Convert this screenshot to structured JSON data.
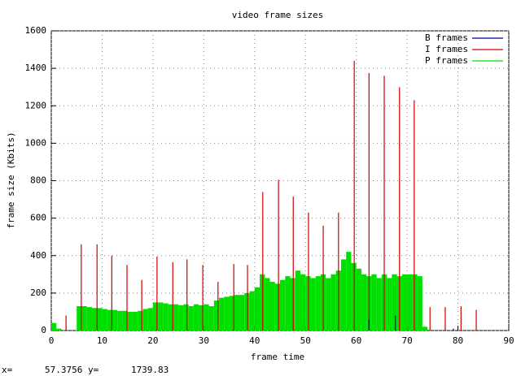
{
  "chart_data": {
    "type": "impulse",
    "title": "video frame sizes",
    "xlabel": "frame time",
    "ylabel": "frame size (Kbits)",
    "xlim": [
      0,
      90
    ],
    "xticks": [
      0,
      10,
      20,
      30,
      40,
      50,
      60,
      70,
      80,
      90
    ],
    "ylim": [
      0,
      1600
    ],
    "yticks": [
      0,
      200,
      400,
      600,
      800,
      1000,
      1200,
      1400,
      1600
    ],
    "grid": true,
    "legend": "top-right",
    "series": [
      {
        "name": "B frames",
        "color": "#0000a0",
        "x": [
          62.5,
          67.7,
          79.1
        ],
        "values": [
          60,
          80,
          10
        ]
      },
      {
        "name": "I frames",
        "color": "#d00000",
        "x": [
          2.9,
          5.9,
          9.0,
          11.9,
          14.9,
          17.8,
          20.8,
          23.9,
          26.7,
          29.8,
          32.8,
          35.9,
          38.6,
          41.6,
          44.7,
          47.6,
          50.6,
          53.5,
          56.5,
          59.6,
          62.5,
          65.5,
          68.5,
          71.4,
          74.5,
          77.5,
          80.6,
          83.6
        ],
        "values": [
          80,
          460,
          460,
          400,
          350,
          270,
          395,
          365,
          380,
          350,
          260,
          355,
          350,
          740,
          805,
          715,
          630,
          560,
          630,
          1440,
          1375,
          1360,
          1300,
          1230,
          125,
          125,
          130,
          110
        ]
      },
      {
        "name": "P frames",
        "color": "#00e000",
        "x": [
          0,
          1,
          2,
          3,
          4,
          5,
          6,
          7,
          8,
          9,
          10,
          11,
          12,
          13,
          14,
          15,
          16,
          17,
          18,
          19,
          20,
          21,
          22,
          23,
          24,
          25,
          26,
          27,
          28,
          29,
          30,
          31,
          32,
          33,
          34,
          35,
          36,
          37,
          38,
          39,
          40,
          41,
          42,
          43,
          44,
          45,
          46,
          47,
          48,
          49,
          50,
          51,
          52,
          53,
          54,
          55,
          56,
          57,
          58,
          59,
          60,
          61,
          62,
          63,
          64,
          65,
          66,
          67,
          68,
          69,
          70,
          71,
          72,
          73
        ],
        "values": [
          40,
          10,
          0,
          0,
          0,
          130,
          130,
          125,
          120,
          120,
          115,
          110,
          110,
          105,
          105,
          100,
          100,
          105,
          115,
          120,
          150,
          150,
          145,
          140,
          140,
          135,
          140,
          130,
          140,
          135,
          140,
          130,
          160,
          175,
          180,
          185,
          190,
          190,
          200,
          210,
          230,
          300,
          280,
          260,
          250,
          270,
          290,
          280,
          320,
          300,
          290,
          280,
          290,
          300,
          280,
          300,
          320,
          380,
          420,
          360,
          330,
          300,
          290,
          300,
          280,
          300,
          280,
          300,
          290,
          300,
          300,
          300,
          290,
          20
        ]
      }
    ],
    "status": "x=      57.3756 y=      1739.83"
  }
}
